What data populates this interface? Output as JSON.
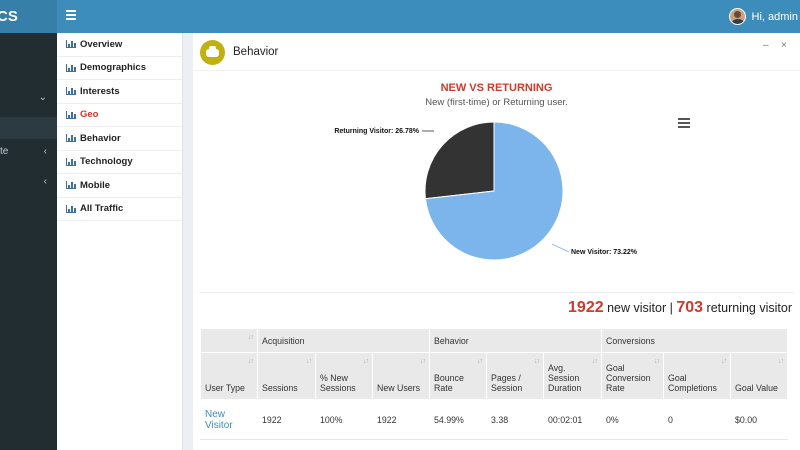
{
  "app": {
    "logo_text": "CS",
    "user_greeting": "Hi, admin"
  },
  "submenu": [
    {
      "label": "Overview",
      "active": false
    },
    {
      "label": "Demographics",
      "active": false
    },
    {
      "label": "Interests",
      "active": false
    },
    {
      "label": "Geo",
      "active": true
    },
    {
      "label": "Behavior",
      "active": false
    },
    {
      "label": "Technology",
      "active": false
    },
    {
      "label": "Mobile",
      "active": false
    },
    {
      "label": "All Traffic",
      "active": false
    }
  ],
  "sidebar": {
    "item_text": "te"
  },
  "panel": {
    "title": "Behavior",
    "minimize": "–",
    "close": "×"
  },
  "chart_data": {
    "type": "pie",
    "title": "NEW VS RETURNING",
    "subtitle": "New (first-time) or Returning user.",
    "series": [
      {
        "name": "Returning Visitor",
        "value": 26.78,
        "label": "Returning Visitor: 26.78%",
        "color": "#333333"
      },
      {
        "name": "New Visitor",
        "value": 73.22,
        "label": "New Visitor: 73.22%",
        "color": "#7cb5ec"
      }
    ]
  },
  "summary": {
    "new_count": "1922",
    "new_text": "new visitor",
    "sep": "|",
    "ret_count": "703",
    "ret_text": "returning visitor"
  },
  "table": {
    "group_headers": [
      "",
      "Acquisition",
      "Behavior",
      "Conversions"
    ],
    "columns": [
      "User Type",
      "Sessions",
      "% New Sessions",
      "New Users",
      "Bounce Rate",
      "Pages / Session",
      "Avg. Session Duration",
      "Goal Conversion Rate",
      "Goal Completions",
      "Goal Value"
    ],
    "rows": [
      [
        "New Visitor",
        "1922",
        "100%",
        "1922",
        "54.99%",
        "3.38",
        "00:02:01",
        "0%",
        "0",
        "$0.00"
      ]
    ]
  },
  "colors": {
    "header": "#3c8dbc",
    "sidebar": "#222d32",
    "accent_red": "#d0392b",
    "link": "#3c8dbc"
  },
  "icons": {
    "menu": "hamburger-icon",
    "chart": "bar-chart-icon",
    "export": "chart-menu-icon",
    "behavior": "handshake-icon"
  }
}
